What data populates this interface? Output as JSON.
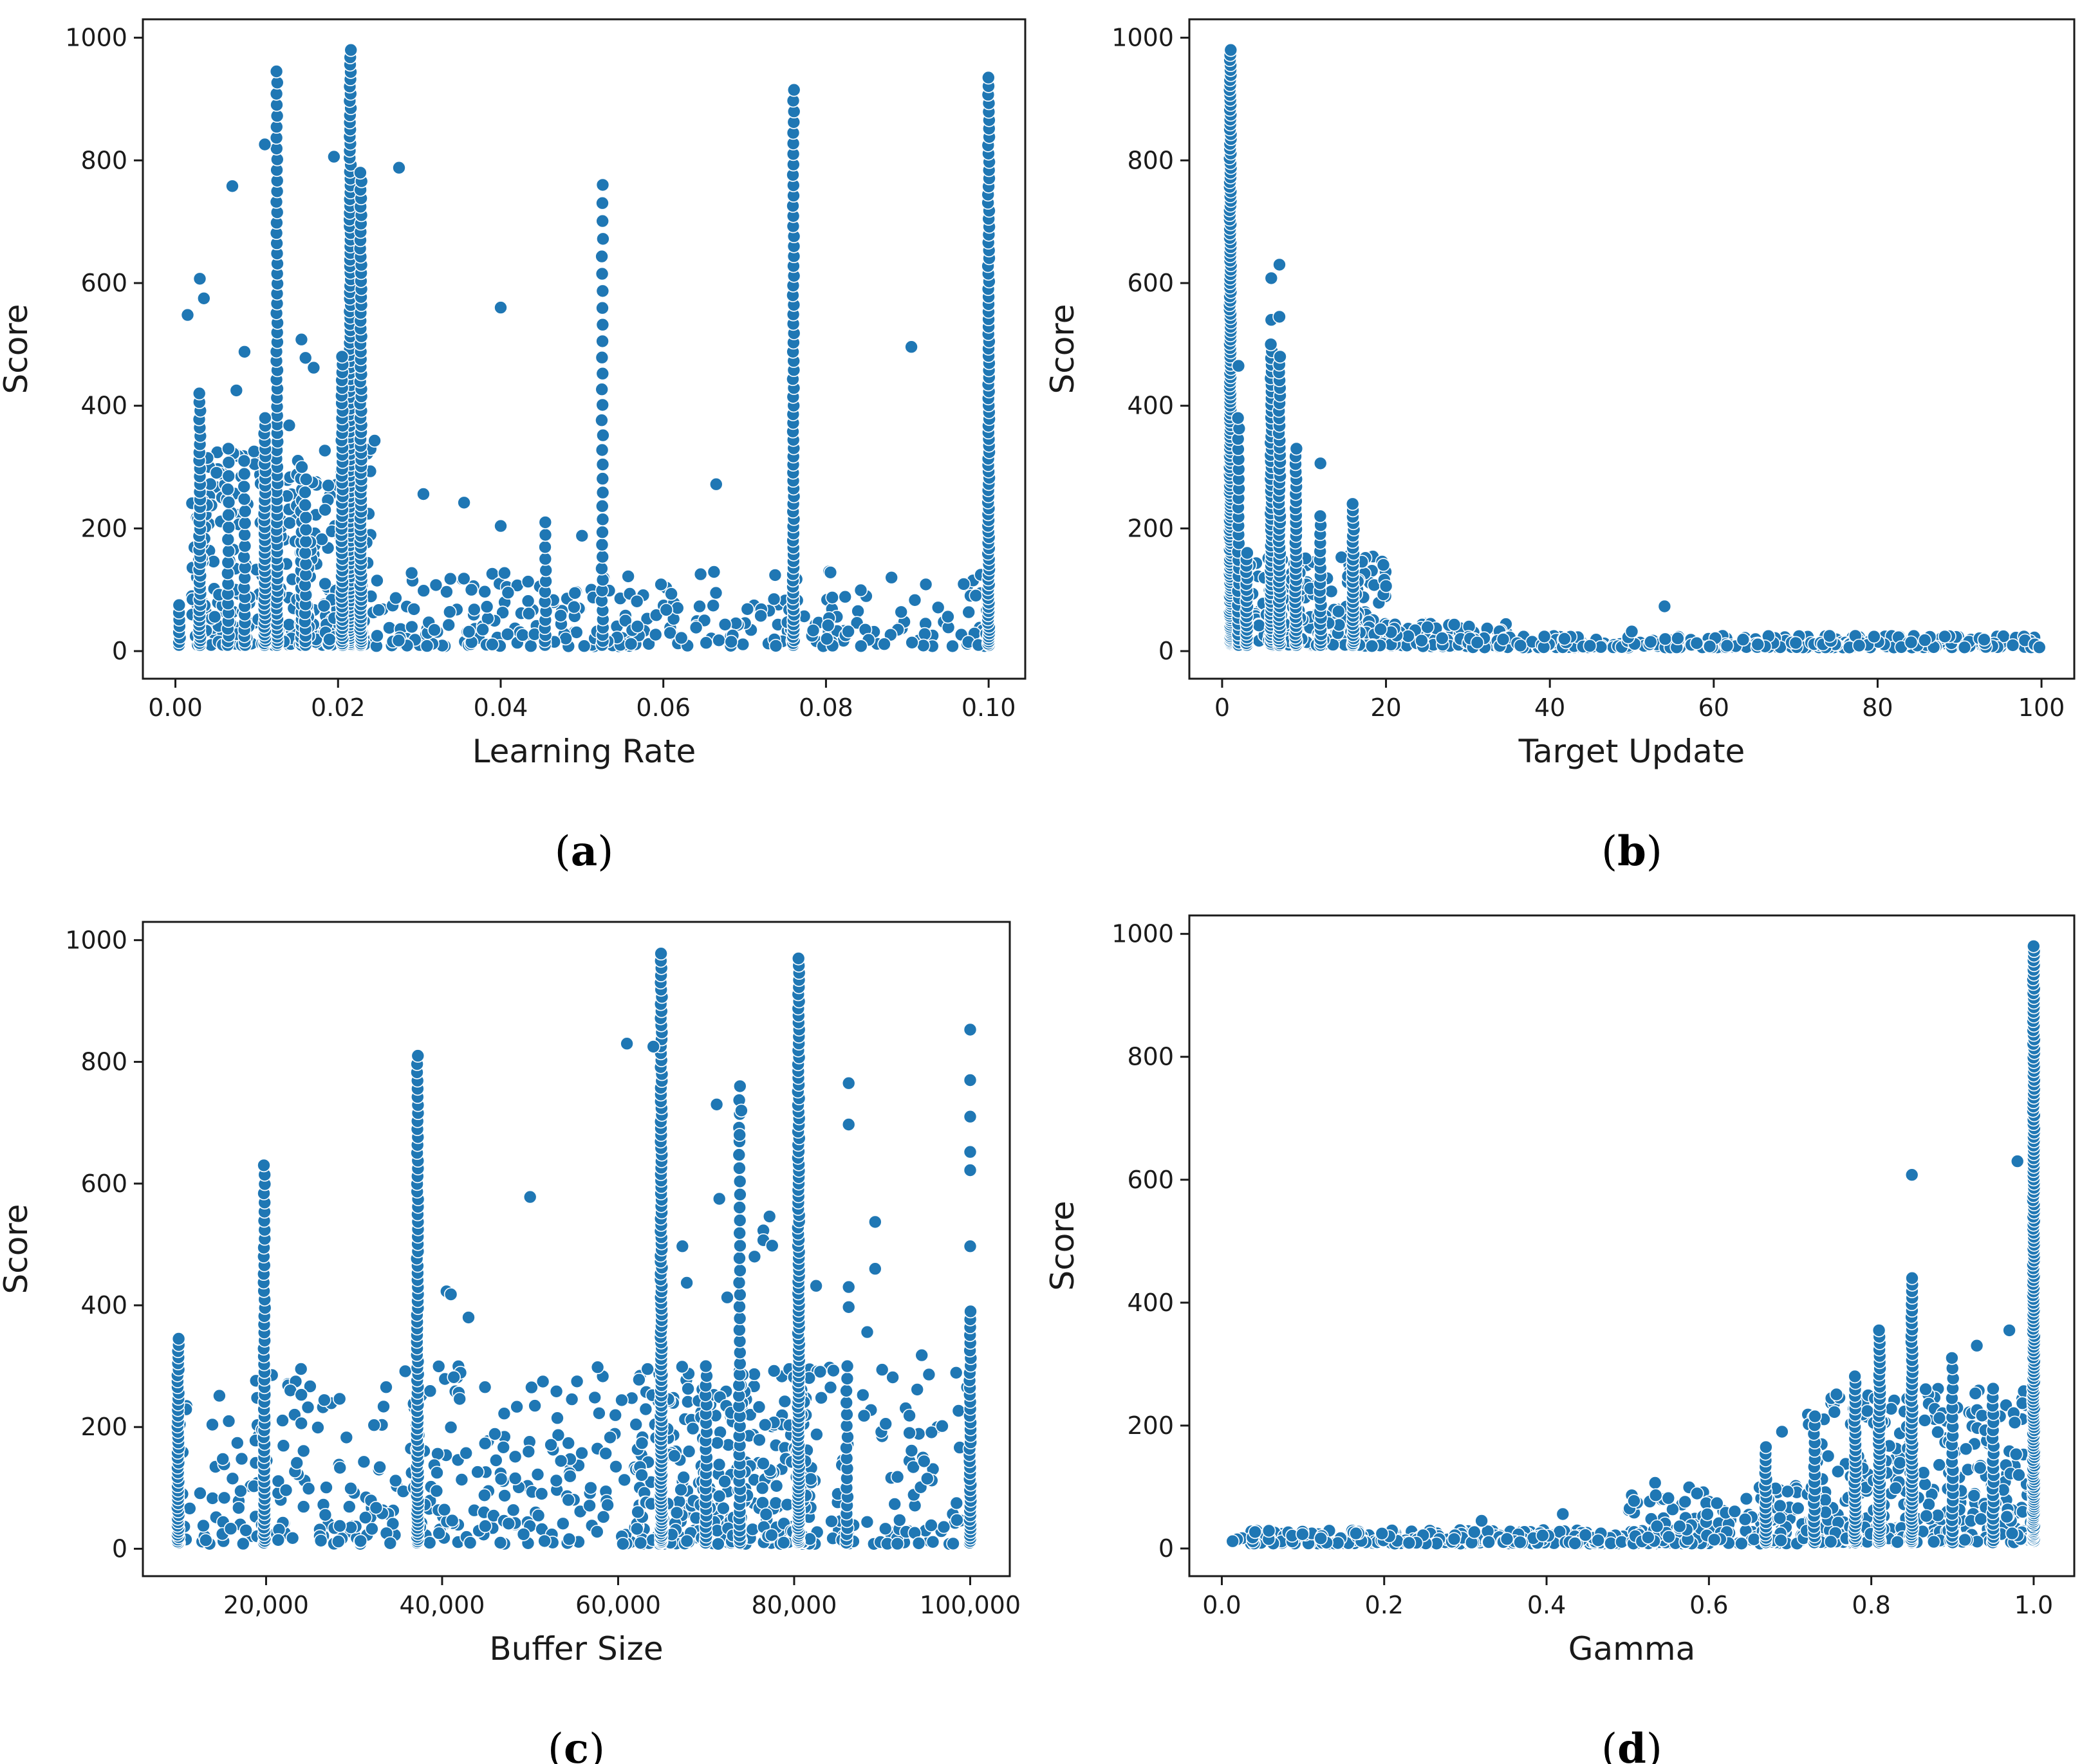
{
  "marker_color": "#1f77b4",
  "chart_data": [
    {
      "id": "a",
      "panel_label": "a",
      "type": "scatter",
      "xlabel": "Learning Rate",
      "ylabel": "Score",
      "xlim": [
        -0.004,
        0.1045
      ],
      "ylim": [
        -45,
        1030
      ],
      "xticks": [
        0.0,
        0.02,
        0.04,
        0.06,
        0.08,
        0.1
      ],
      "xtick_labels": [
        "0.00",
        "0.02",
        "0.04",
        "0.06",
        "0.08",
        "0.10"
      ],
      "yticks": [
        0,
        200,
        400,
        600,
        800,
        1000
      ],
      "ytick_labels": [
        "0",
        "200",
        "400",
        "600",
        "800",
        "1000"
      ],
      "columns": [
        {
          "x": 0.0125,
          "range": [
            10,
            945
          ],
          "n": 70
        },
        {
          "x": 0.0215,
          "range": [
            10,
            980
          ],
          "n": 110
        },
        {
          "x": 0.0228,
          "range": [
            10,
            780
          ],
          "n": 75
        },
        {
          "x": 0.0205,
          "range": [
            10,
            480
          ],
          "n": 50
        },
        {
          "x": 0.011,
          "range": [
            10,
            380
          ],
          "n": 40
        },
        {
          "x": 0.003,
          "range": [
            10,
            420
          ],
          "n": 40
        },
        {
          "x": 0.0525,
          "range": [
            10,
            760
          ],
          "n": 35
        },
        {
          "x": 0.076,
          "range": [
            10,
            915
          ],
          "n": 70
        },
        {
          "x": 0.1,
          "range": [
            10,
            935
          ],
          "n": 90
        },
        {
          "x": 0.0455,
          "range": [
            10,
            210
          ],
          "n": 14
        },
        {
          "x": 0.0155,
          "range": [
            10,
            300
          ],
          "n": 22
        },
        {
          "x": 0.016,
          "range": [
            10,
            280
          ],
          "n": 18
        },
        {
          "x": 0.0065,
          "range": [
            10,
            330
          ],
          "n": 20
        },
        {
          "x": 0.0085,
          "range": [
            10,
            310
          ],
          "n": 20
        },
        {
          "x": 0.0005,
          "range": [
            10,
            75
          ],
          "n": 8
        }
      ],
      "clouds": [
        {
          "x": [
            0.002,
            0.024
          ],
          "y": [
            10,
            330
          ],
          "n": 320
        },
        {
          "x": [
            0.024,
            0.1
          ],
          "y": [
            8,
            130
          ],
          "n": 300
        }
      ],
      "points": [
        {
          "x": 0.0015,
          "y": 548
        },
        {
          "x": 0.003,
          "y": 607
        },
        {
          "x": 0.0035,
          "y": 575
        },
        {
          "x": 0.007,
          "y": 758
        },
        {
          "x": 0.011,
          "y": 826
        },
        {
          "x": 0.0195,
          "y": 806
        },
        {
          "x": 0.0275,
          "y": 788
        },
        {
          "x": 0.0085,
          "y": 488
        },
        {
          "x": 0.04,
          "y": 560
        },
        {
          "x": 0.0905,
          "y": 496
        },
        {
          "x": 0.0665,
          "y": 272
        },
        {
          "x": 0.0305,
          "y": 256
        },
        {
          "x": 0.0355,
          "y": 242
        },
        {
          "x": 0.0155,
          "y": 508
        },
        {
          "x": 0.016,
          "y": 478
        },
        {
          "x": 0.017,
          "y": 462
        },
        {
          "x": 0.0245,
          "y": 343
        },
        {
          "x": 0.04,
          "y": 204
        },
        {
          "x": 0.05,
          "y": 188
        },
        {
          "x": 0.0075,
          "y": 425
        },
        {
          "x": 0.014,
          "y": 368
        }
      ]
    },
    {
      "id": "b",
      "panel_label": "b",
      "type": "scatter",
      "xlabel": "Target Update",
      "ylabel": "Score",
      "xlim": [
        -4,
        104
      ],
      "ylim": [
        -45,
        1030
      ],
      "xticks": [
        0,
        20,
        40,
        60,
        80,
        100
      ],
      "xtick_labels": [
        "0",
        "20",
        "40",
        "60",
        "80",
        "100"
      ],
      "yticks": [
        0,
        200,
        400,
        600,
        800,
        1000
      ],
      "ytick_labels": [
        "0",
        "200",
        "400",
        "600",
        "800",
        "1000"
      ],
      "columns": [
        {
          "x": 1,
          "range": [
            10,
            980
          ],
          "n": 160
        },
        {
          "x": 6,
          "range": [
            10,
            500
          ],
          "n": 60
        },
        {
          "x": 7,
          "range": [
            10,
            480
          ],
          "n": 50
        },
        {
          "x": 9,
          "range": [
            10,
            330
          ],
          "n": 35
        },
        {
          "x": 16,
          "range": [
            10,
            240
          ],
          "n": 30
        },
        {
          "x": 2,
          "range": [
            10,
            380
          ],
          "n": 30
        },
        {
          "x": 3,
          "range": [
            10,
            160
          ],
          "n": 20
        },
        {
          "x": 12,
          "range": [
            10,
            220
          ],
          "n": 20
        }
      ],
      "clouds": [
        {
          "x": [
            1,
            20
          ],
          "y": [
            10,
            160
          ],
          "n": 220
        },
        {
          "x": [
            16,
            35
          ],
          "y": [
            8,
            45
          ],
          "n": 120
        },
        {
          "x": [
            30,
            100
          ],
          "y": [
            6,
            25
          ],
          "n": 320
        }
      ],
      "points": [
        {
          "x": 6,
          "y": 608
        },
        {
          "x": 7,
          "y": 630
        },
        {
          "x": 6,
          "y": 540
        },
        {
          "x": 7,
          "y": 545
        },
        {
          "x": 20,
          "y": 106
        },
        {
          "x": 54,
          "y": 73
        },
        {
          "x": 12,
          "y": 306
        },
        {
          "x": 2,
          "y": 465
        },
        {
          "x": 50,
          "y": 32
        }
      ]
    },
    {
      "id": "c",
      "panel_label": "c",
      "type": "scatter",
      "xlabel": "Buffer Size",
      "ylabel": "Score",
      "xlim": [
        6000,
        104500
      ],
      "ylim": [
        -45,
        1030
      ],
      "xticks": [
        20000,
        40000,
        60000,
        80000,
        100000
      ],
      "xtick_labels": [
        "20,000",
        "40,000",
        "60,000",
        "80,000",
        "100,000"
      ],
      "yticks": [
        0,
        200,
        400,
        600,
        800,
        1000
      ],
      "ytick_labels": [
        "0",
        "200",
        "400",
        "600",
        "800",
        "1000"
      ],
      "columns": [
        {
          "x": 10000,
          "range": [
            10,
            345
          ],
          "n": 45
        },
        {
          "x": 19800,
          "range": [
            10,
            630
          ],
          "n": 55
        },
        {
          "x": 37200,
          "range": [
            10,
            810
          ],
          "n": 80
        },
        {
          "x": 64900,
          "range": [
            10,
            978
          ],
          "n": 110
        },
        {
          "x": 80500,
          "range": [
            10,
            970
          ],
          "n": 110
        },
        {
          "x": 73800,
          "range": [
            10,
            760
          ],
          "n": 45
        },
        {
          "x": 100000,
          "range": [
            10,
            390
          ],
          "n": 40
        },
        {
          "x": 70000,
          "range": [
            10,
            300
          ],
          "n": 25
        },
        {
          "x": 86000,
          "range": [
            10,
            300
          ],
          "n": 20
        }
      ],
      "clouds": [
        {
          "x": [
            10000,
            100000
          ],
          "y": [
            8,
            300
          ],
          "n": 520
        },
        {
          "x": [
            62000,
            82000
          ],
          "y": [
            8,
            300
          ],
          "n": 200
        }
      ],
      "points": [
        {
          "x": 61000,
          "y": 830
        },
        {
          "x": 64000,
          "y": 825
        },
        {
          "x": 50000,
          "y": 578
        },
        {
          "x": 100000,
          "y": 853
        },
        {
          "x": 100000,
          "y": 770
        },
        {
          "x": 100000,
          "y": 710
        },
        {
          "x": 100000,
          "y": 652
        },
        {
          "x": 100000,
          "y": 622
        },
        {
          "x": 100000,
          "y": 497
        },
        {
          "x": 86200,
          "y": 765
        },
        {
          "x": 86200,
          "y": 697
        },
        {
          "x": 86200,
          "y": 430
        },
        {
          "x": 86200,
          "y": 397
        },
        {
          "x": 89200,
          "y": 537
        },
        {
          "x": 89200,
          "y": 460
        },
        {
          "x": 94500,
          "y": 318
        },
        {
          "x": 71200,
          "y": 730
        },
        {
          "x": 67300,
          "y": 497
        },
        {
          "x": 67800,
          "y": 437
        },
        {
          "x": 76500,
          "y": 523
        },
        {
          "x": 76500,
          "y": 507
        },
        {
          "x": 77500,
          "y": 498
        },
        {
          "x": 75500,
          "y": 480
        },
        {
          "x": 82500,
          "y": 432
        },
        {
          "x": 88300,
          "y": 356
        },
        {
          "x": 40500,
          "y": 423
        },
        {
          "x": 41000,
          "y": 418
        },
        {
          "x": 43000,
          "y": 380
        },
        {
          "x": 72400,
          "y": 413
        },
        {
          "x": 71500,
          "y": 575
        },
        {
          "x": 77200,
          "y": 546
        },
        {
          "x": 73800,
          "y": 680
        },
        {
          "x": 74000,
          "y": 720
        }
      ]
    },
    {
      "id": "d",
      "panel_label": "d",
      "type": "scatter",
      "xlabel": "Gamma",
      "ylabel": "Score",
      "xlim": [
        -0.04,
        1.05
      ],
      "ylim": [
        -45,
        1030
      ],
      "xticks": [
        0.0,
        0.2,
        0.4,
        0.6,
        0.8,
        1.0
      ],
      "xtick_labels": [
        "0.0",
        "0.2",
        "0.4",
        "0.6",
        "0.8",
        "1.0"
      ],
      "yticks": [
        0,
        200,
        400,
        600,
        800,
        1000
      ],
      "ytick_labels": [
        "0",
        "200",
        "400",
        "600",
        "800",
        "1000"
      ],
      "columns": [
        {
          "x": 1.0,
          "range": [
            10,
            980
          ],
          "n": 170
        },
        {
          "x": 0.85,
          "range": [
            10,
            440
          ],
          "n": 55
        },
        {
          "x": 0.81,
          "range": [
            10,
            355
          ],
          "n": 45
        },
        {
          "x": 0.78,
          "range": [
            10,
            280
          ],
          "n": 35
        },
        {
          "x": 0.67,
          "range": [
            10,
            165
          ],
          "n": 20
        },
        {
          "x": 0.9,
          "range": [
            10,
            310
          ],
          "n": 25
        },
        {
          "x": 0.95,
          "range": [
            10,
            260
          ],
          "n": 25
        },
        {
          "x": 0.73,
          "range": [
            10,
            215
          ],
          "n": 20
        }
      ],
      "clouds": [
        {
          "x": [
            0.01,
            0.6
          ],
          "y": [
            8,
            30
          ],
          "n": 360
        },
        {
          "x": [
            0.5,
            0.75
          ],
          "y": [
            8,
            110
          ],
          "n": 160
        },
        {
          "x": [
            0.72,
            1.0
          ],
          "y": [
            10,
            260
          ],
          "n": 320
        }
      ],
      "points": [
        {
          "x": 0.85,
          "y": 608
        },
        {
          "x": 0.32,
          "y": 45
        },
        {
          "x": 0.42,
          "y": 56
        },
        {
          "x": 0.97,
          "y": 355
        },
        {
          "x": 0.93,
          "y": 330
        },
        {
          "x": 0.98,
          "y": 630
        },
        {
          "x": 0.55,
          "y": 82
        },
        {
          "x": 0.69,
          "y": 190
        }
      ]
    }
  ]
}
